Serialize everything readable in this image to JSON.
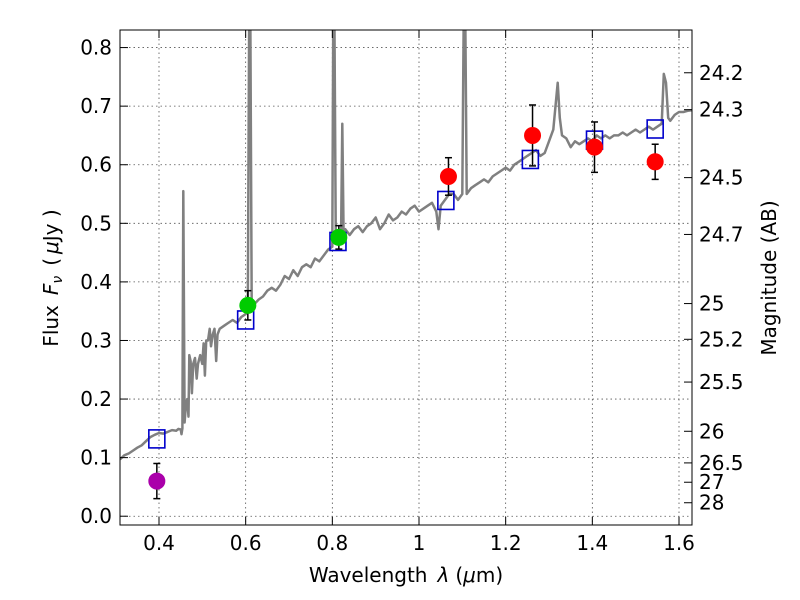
{
  "chart_data": {
    "type": "scatter",
    "xlabel": "Wavelength",
    "xlabel_symbol": "λ",
    "xlabel_unit_open": "(",
    "xlabel_unit_mu": "μ",
    "xlabel_unit_rest": "m)",
    "ylabel": "Flux",
    "ylabel_symbol": "F",
    "ylabel_symbol_sub": "ν",
    "ylabel_unit_open": "(",
    "ylabel_unit_mu": "μ",
    "ylabel_unit_rest": "Jy )",
    "y2label": "Magnitude (AB)",
    "xlim": [
      0.31,
      1.63
    ],
    "ylim": [
      -0.015,
      0.83
    ],
    "xticks": [
      0.4,
      0.6,
      0.8,
      1.0,
      1.2,
      1.4,
      1.6
    ],
    "xtick_labels": [
      "0.4",
      "0.6",
      "0.8",
      "1",
      "1.2",
      "1.4",
      "1.6"
    ],
    "yticks": [
      0.0,
      0.1,
      0.2,
      0.3,
      0.4,
      0.5,
      0.6,
      0.7,
      0.8
    ],
    "ytick_labels": [
      "0.0",
      "0.1",
      "0.2",
      "0.3",
      "0.4",
      "0.5",
      "0.6",
      "0.7",
      "0.8"
    ],
    "y2ticks": [
      {
        "label": "24.2",
        "flux": 0.757
      },
      {
        "label": "24.3",
        "flux": 0.694
      },
      {
        "label": "24.5",
        "flux": 0.578
      },
      {
        "label": "24.7",
        "flux": 0.481
      },
      {
        "label": "25",
        "flux": 0.363
      },
      {
        "label": "25.2",
        "flux": 0.302
      },
      {
        "label": "25.5",
        "flux": 0.229
      },
      {
        "label": "26",
        "flux": 0.145
      },
      {
        "label": "26.5",
        "flux": 0.091
      },
      {
        "label": "27",
        "flux": 0.058
      },
      {
        "label": "28",
        "flux": 0.023
      }
    ],
    "grid": true,
    "colors": {
      "model_line": "#808080",
      "model_box": "#0000cc",
      "error_bar": "#000000"
    },
    "photometry": [
      {
        "x": 0.395,
        "y": 0.06,
        "err": 0.03,
        "color": "#aa00aa"
      },
      {
        "x": 0.605,
        "y": 0.36,
        "err": 0.025,
        "color": "#00cc00"
      },
      {
        "x": 0.815,
        "y": 0.476,
        "err": 0.02,
        "color": "#00cc00"
      },
      {
        "x": 1.068,
        "y": 0.58,
        "err": 0.032,
        "color": "#ff0000"
      },
      {
        "x": 1.262,
        "y": 0.65,
        "err": 0.052,
        "color": "#ff0000"
      },
      {
        "x": 1.405,
        "y": 0.63,
        "err": 0.043,
        "color": "#ff0000"
      },
      {
        "x": 1.545,
        "y": 0.605,
        "err": 0.03,
        "color": "#ff0000"
      }
    ],
    "model_boxes": [
      {
        "x": 0.395,
        "y": 0.132
      },
      {
        "x": 0.6,
        "y": 0.335
      },
      {
        "x": 0.813,
        "y": 0.469
      },
      {
        "x": 1.062,
        "y": 0.539
      },
      {
        "x": 1.257,
        "y": 0.609
      },
      {
        "x": 1.405,
        "y": 0.642
      },
      {
        "x": 1.545,
        "y": 0.661
      }
    ],
    "model_spectrum": [
      [
        0.31,
        0.097
      ],
      [
        0.32,
        0.104
      ],
      [
        0.33,
        0.107
      ],
      [
        0.34,
        0.112
      ],
      [
        0.35,
        0.117
      ],
      [
        0.36,
        0.121
      ],
      [
        0.37,
        0.128
      ],
      [
        0.38,
        0.135
      ],
      [
        0.39,
        0.139
      ],
      [
        0.4,
        0.142
      ],
      [
        0.41,
        0.141
      ],
      [
        0.42,
        0.144
      ],
      [
        0.43,
        0.147
      ],
      [
        0.44,
        0.146
      ],
      [
        0.445,
        0.149
      ],
      [
        0.45,
        0.148
      ],
      [
        0.452,
        0.14
      ],
      [
        0.454,
        0.15
      ],
      [
        0.456,
        0.555
      ],
      [
        0.459,
        0.16
      ],
      [
        0.462,
        0.19
      ],
      [
        0.465,
        0.2
      ],
      [
        0.468,
        0.17
      ],
      [
        0.47,
        0.275
      ],
      [
        0.473,
        0.265
      ],
      [
        0.476,
        0.21
      ],
      [
        0.479,
        0.26
      ],
      [
        0.483,
        0.27
      ],
      [
        0.487,
        0.235
      ],
      [
        0.49,
        0.26
      ],
      [
        0.495,
        0.275
      ],
      [
        0.5,
        0.26
      ],
      [
        0.503,
        0.295
      ],
      [
        0.506,
        0.24
      ],
      [
        0.509,
        0.3
      ],
      [
        0.513,
        0.3
      ],
      [
        0.517,
        0.32
      ],
      [
        0.52,
        0.29
      ],
      [
        0.524,
        0.31
      ],
      [
        0.528,
        0.32
      ],
      [
        0.532,
        0.265
      ],
      [
        0.535,
        0.31
      ],
      [
        0.54,
        0.32
      ],
      [
        0.55,
        0.325
      ],
      [
        0.56,
        0.33
      ],
      [
        0.57,
        0.335
      ],
      [
        0.58,
        0.33
      ],
      [
        0.59,
        0.34
      ],
      [
        0.6,
        0.345
      ],
      [
        0.605,
        0.35
      ],
      [
        0.608,
        0.83
      ],
      [
        0.611,
        0.83
      ],
      [
        0.614,
        0.36
      ],
      [
        0.62,
        0.362
      ],
      [
        0.63,
        0.37
      ],
      [
        0.64,
        0.375
      ],
      [
        0.65,
        0.385
      ],
      [
        0.66,
        0.39
      ],
      [
        0.67,
        0.385
      ],
      [
        0.68,
        0.395
      ],
      [
        0.69,
        0.41
      ],
      [
        0.7,
        0.405
      ],
      [
        0.71,
        0.42
      ],
      [
        0.72,
        0.41
      ],
      [
        0.73,
        0.425
      ],
      [
        0.74,
        0.43
      ],
      [
        0.75,
        0.425
      ],
      [
        0.76,
        0.44
      ],
      [
        0.77,
        0.435
      ],
      [
        0.78,
        0.445
      ],
      [
        0.79,
        0.455
      ],
      [
        0.8,
        0.46
      ],
      [
        0.802,
        0.83
      ],
      [
        0.805,
        0.83
      ],
      [
        0.808,
        0.47
      ],
      [
        0.815,
        0.48
      ],
      [
        0.82,
        0.47
      ],
      [
        0.823,
        0.67
      ],
      [
        0.826,
        0.48
      ],
      [
        0.83,
        0.49
      ],
      [
        0.84,
        0.48
      ],
      [
        0.85,
        0.49
      ],
      [
        0.86,
        0.495
      ],
      [
        0.87,
        0.485
      ],
      [
        0.88,
        0.495
      ],
      [
        0.89,
        0.5
      ],
      [
        0.9,
        0.51
      ],
      [
        0.91,
        0.49
      ],
      [
        0.92,
        0.5
      ],
      [
        0.93,
        0.515
      ],
      [
        0.94,
        0.505
      ],
      [
        0.95,
        0.51
      ],
      [
        0.96,
        0.52
      ],
      [
        0.97,
        0.515
      ],
      [
        0.98,
        0.525
      ],
      [
        0.99,
        0.53
      ],
      [
        1.0,
        0.52
      ],
      [
        1.01,
        0.525
      ],
      [
        1.02,
        0.53
      ],
      [
        1.03,
        0.535
      ],
      [
        1.04,
        0.52
      ],
      [
        1.045,
        0.49
      ],
      [
        1.05,
        0.53
      ],
      [
        1.06,
        0.54
      ],
      [
        1.07,
        0.55
      ],
      [
        1.08,
        0.55
      ],
      [
        1.09,
        0.54
      ],
      [
        1.1,
        0.55
      ],
      [
        1.103,
        0.83
      ],
      [
        1.107,
        0.83
      ],
      [
        1.11,
        0.55
      ],
      [
        1.12,
        0.56
      ],
      [
        1.13,
        0.565
      ],
      [
        1.14,
        0.57
      ],
      [
        1.15,
        0.575
      ],
      [
        1.16,
        0.57
      ],
      [
        1.17,
        0.58
      ],
      [
        1.18,
        0.585
      ],
      [
        1.19,
        0.59
      ],
      [
        1.2,
        0.595
      ],
      [
        1.21,
        0.59
      ],
      [
        1.22,
        0.6
      ],
      [
        1.23,
        0.605
      ],
      [
        1.24,
        0.61
      ],
      [
        1.25,
        0.615
      ],
      [
        1.26,
        0.62
      ],
      [
        1.27,
        0.625
      ],
      [
        1.28,
        0.615
      ],
      [
        1.29,
        0.62
      ],
      [
        1.3,
        0.64
      ],
      [
        1.31,
        0.66
      ],
      [
        1.32,
        0.74
      ],
      [
        1.325,
        0.68
      ],
      [
        1.33,
        0.65
      ],
      [
        1.34,
        0.645
      ],
      [
        1.35,
        0.63
      ],
      [
        1.36,
        0.64
      ],
      [
        1.37,
        0.635
      ],
      [
        1.38,
        0.64
      ],
      [
        1.39,
        0.645
      ],
      [
        1.4,
        0.64
      ],
      [
        1.41,
        0.65
      ],
      [
        1.42,
        0.645
      ],
      [
        1.43,
        0.65
      ],
      [
        1.44,
        0.645
      ],
      [
        1.45,
        0.65
      ],
      [
        1.46,
        0.65
      ],
      [
        1.47,
        0.655
      ],
      [
        1.48,
        0.65
      ],
      [
        1.49,
        0.655
      ],
      [
        1.5,
        0.66
      ],
      [
        1.51,
        0.655
      ],
      [
        1.52,
        0.66
      ],
      [
        1.53,
        0.665
      ],
      [
        1.54,
        0.66
      ],
      [
        1.55,
        0.665
      ],
      [
        1.56,
        0.67
      ],
      [
        1.565,
        0.755
      ],
      [
        1.57,
        0.74
      ],
      [
        1.575,
        0.68
      ],
      [
        1.58,
        0.675
      ],
      [
        1.59,
        0.685
      ],
      [
        1.6,
        0.69
      ],
      [
        1.61,
        0.69
      ],
      [
        1.62,
        0.692
      ],
      [
        1.63,
        0.693
      ]
    ]
  }
}
